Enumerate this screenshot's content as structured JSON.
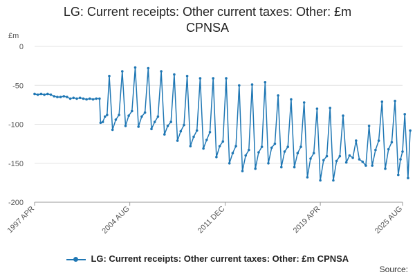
{
  "chart_data": {
    "type": "line",
    "title_line1": "LG: Current receipts: Other current taxes: Other: £m",
    "title_line2": "CPNSA",
    "ylabel": "£m",
    "ylim": [
      -200,
      0
    ],
    "yticks": [
      "0",
      "-50",
      "-100",
      "-150",
      "-200"
    ],
    "ytick_values": [
      0,
      -50,
      -100,
      -150,
      -200
    ],
    "xlim": [
      1997.25,
      2025.58
    ],
    "xticks": [
      {
        "label": "1997 APR",
        "value": 1997.25
      },
      {
        "label": "2004 AUG",
        "value": 2004.58
      },
      {
        "label": "2011 DEC",
        "value": 2011.92
      },
      {
        "label": "2019 APR",
        "value": 2019.25
      },
      {
        "label": "2025 AUG",
        "value": 2025.58
      }
    ],
    "grid": true,
    "legend_position": "bottom",
    "color": "#1f77b4",
    "series": [
      {
        "name": "LG: Current receipts: Other current taxes: Other: £m CPNSA",
        "points": [
          [
            1997.25,
            -61
          ],
          [
            1997.5,
            -62
          ],
          [
            1997.75,
            -61
          ],
          [
            1998.0,
            -62
          ],
          [
            1998.25,
            -61
          ],
          [
            1998.5,
            -62
          ],
          [
            1998.75,
            -64
          ],
          [
            1999.0,
            -65
          ],
          [
            1999.25,
            -65
          ],
          [
            1999.5,
            -64
          ],
          [
            1999.75,
            -65
          ],
          [
            2000.0,
            -67
          ],
          [
            2000.25,
            -66
          ],
          [
            2000.5,
            -67
          ],
          [
            2000.75,
            -66
          ],
          [
            2001.0,
            -67
          ],
          [
            2001.25,
            -68
          ],
          [
            2001.5,
            -67
          ],
          [
            2001.75,
            -68
          ],
          [
            2002.0,
            -67
          ],
          [
            2002.25,
            -67
          ],
          [
            2002.33,
            -98
          ],
          [
            2002.5,
            -97
          ],
          [
            2002.67,
            -90
          ],
          [
            2002.83,
            -88
          ],
          [
            2003.0,
            -38
          ],
          [
            2003.25,
            -107
          ],
          [
            2003.5,
            -94
          ],
          [
            2003.75,
            -88
          ],
          [
            2004.0,
            -32
          ],
          [
            2004.25,
            -102
          ],
          [
            2004.5,
            -89
          ],
          [
            2004.75,
            -83
          ],
          [
            2005.0,
            -27
          ],
          [
            2005.25,
            -103
          ],
          [
            2005.5,
            -90
          ],
          [
            2005.75,
            -85
          ],
          [
            2006.0,
            -28
          ],
          [
            2006.25,
            -106
          ],
          [
            2006.5,
            -97
          ],
          [
            2006.75,
            -90
          ],
          [
            2007.0,
            -32
          ],
          [
            2007.25,
            -113
          ],
          [
            2007.5,
            -102
          ],
          [
            2007.75,
            -97
          ],
          [
            2008.0,
            -36
          ],
          [
            2008.25,
            -121
          ],
          [
            2008.5,
            -109
          ],
          [
            2008.75,
            -101
          ],
          [
            2009.0,
            -38
          ],
          [
            2009.25,
            -128
          ],
          [
            2009.5,
            -116
          ],
          [
            2009.75,
            -108
          ],
          [
            2010.0,
            -41
          ],
          [
            2010.25,
            -131
          ],
          [
            2010.5,
            -120
          ],
          [
            2010.75,
            -110
          ],
          [
            2011.0,
            -41
          ],
          [
            2011.25,
            -142
          ],
          [
            2011.5,
            -128
          ],
          [
            2011.75,
            -122
          ],
          [
            2012.0,
            -41
          ],
          [
            2012.25,
            -150
          ],
          [
            2012.5,
            -137
          ],
          [
            2012.75,
            -128
          ],
          [
            2013.0,
            -50
          ],
          [
            2013.25,
            -160
          ],
          [
            2013.5,
            -140
          ],
          [
            2013.75,
            -133
          ],
          [
            2014.0,
            -49
          ],
          [
            2014.25,
            -157
          ],
          [
            2014.5,
            -136
          ],
          [
            2014.75,
            -129
          ],
          [
            2015.0,
            -46
          ],
          [
            2015.25,
            -150
          ],
          [
            2015.5,
            -130
          ],
          [
            2015.75,
            -125
          ],
          [
            2016.0,
            -63
          ],
          [
            2016.25,
            -155
          ],
          [
            2016.5,
            -135
          ],
          [
            2016.75,
            -129
          ],
          [
            2017.0,
            -68
          ],
          [
            2017.25,
            -155
          ],
          [
            2017.5,
            -137
          ],
          [
            2017.75,
            -129
          ],
          [
            2018.0,
            -72
          ],
          [
            2018.25,
            -168
          ],
          [
            2018.5,
            -144
          ],
          [
            2018.75,
            -137
          ],
          [
            2019.0,
            -80
          ],
          [
            2019.25,
            -172
          ],
          [
            2019.5,
            -146
          ],
          [
            2019.75,
            -141
          ],
          [
            2020.0,
            -79
          ],
          [
            2020.25,
            -172
          ],
          [
            2020.5,
            -147
          ],
          [
            2020.75,
            -141
          ],
          [
            2021.0,
            -89
          ],
          [
            2021.25,
            -149
          ],
          [
            2021.5,
            -140
          ],
          [
            2021.75,
            -143
          ],
          [
            2022.0,
            -121
          ],
          [
            2022.25,
            -145
          ],
          [
            2022.5,
            -148
          ],
          [
            2022.75,
            -153
          ],
          [
            2023.0,
            -102
          ],
          [
            2023.25,
            -153
          ],
          [
            2023.5,
            -133
          ],
          [
            2023.75,
            -121
          ],
          [
            2024.0,
            -71
          ],
          [
            2024.25,
            -157
          ],
          [
            2024.5,
            -132
          ],
          [
            2024.75,
            -123
          ],
          [
            2025.0,
            -70
          ],
          [
            2025.25,
            -165
          ],
          [
            2025.42,
            -145
          ],
          [
            2025.58,
            -135
          ],
          [
            2025.75,
            -87
          ],
          [
            2026.0,
            -169
          ],
          [
            2026.17,
            -108
          ]
        ]
      }
    ]
  },
  "source_label": "Source:"
}
